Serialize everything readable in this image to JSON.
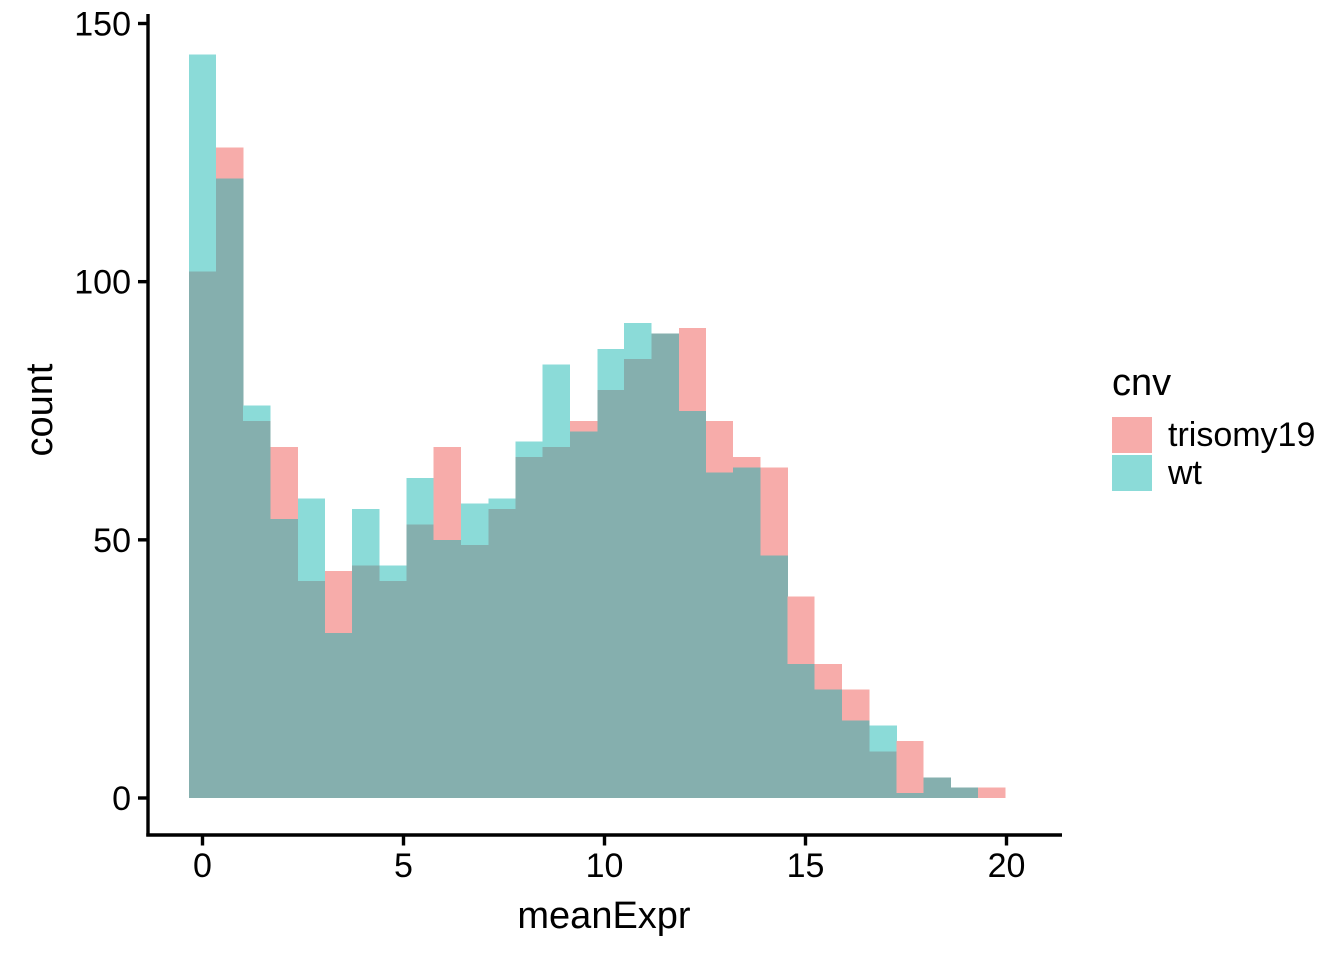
{
  "axes": {
    "x": {
      "label": "meanExpr",
      "ticks": [
        "0",
        "5",
        "10",
        "15",
        "20"
      ],
      "tick_values": [
        0,
        5,
        10,
        15,
        20
      ]
    },
    "y": {
      "label": "count",
      "ticks": [
        "0",
        "50",
        "100",
        "150"
      ],
      "tick_values": [
        0,
        50,
        100,
        150
      ]
    }
  },
  "legend": {
    "title": "cnv",
    "items": [
      {
        "label": "trisomy19",
        "color": "#F7ACAA"
      },
      {
        "label": "wt",
        "color": "#8BDBD8"
      }
    ]
  },
  "colors": {
    "trisomy19": "#F7ACAA",
    "wt": "#8BDBD8",
    "overlap": "#85AFAE",
    "axis": "#000000",
    "background": "#FFFFFF"
  },
  "chart_data": {
    "type": "histogram-overlaid",
    "title": "",
    "xlabel": "meanExpr",
    "ylabel": "count",
    "ylim": [
      0,
      150
    ],
    "xlim": [
      -1.4,
      21.3
    ],
    "grid": false,
    "legend_position": "right",
    "binwidth": 0.68,
    "bin_centers": [
      0.0,
      0.68,
      1.35,
      2.03,
      2.71,
      3.39,
      4.06,
      4.74,
      5.42,
      6.09,
      6.77,
      7.45,
      8.12,
      8.8,
      9.48,
      10.16,
      10.83,
      11.51,
      12.19,
      12.86,
      13.54,
      14.22,
      14.89,
      15.57,
      16.25,
      16.93,
      17.6,
      18.28,
      18.96,
      19.63
    ],
    "series": [
      {
        "name": "trisomy19",
        "values": [
          102,
          126,
          73,
          68,
          42,
          44,
          45,
          42,
          53,
          68,
          49,
          56,
          66,
          68,
          73,
          79,
          85,
          90,
          91,
          73,
          66,
          64,
          39,
          26,
          21,
          9,
          11,
          4,
          2,
          2
        ]
      },
      {
        "name": "wt",
        "values": [
          144,
          120,
          76,
          54,
          58,
          32,
          56,
          45,
          62,
          50,
          57,
          58,
          69,
          84,
          71,
          87,
          92,
          90,
          75,
          63,
          64,
          47,
          26,
          21,
          15,
          14,
          1,
          4,
          2,
          0
        ]
      }
    ]
  }
}
